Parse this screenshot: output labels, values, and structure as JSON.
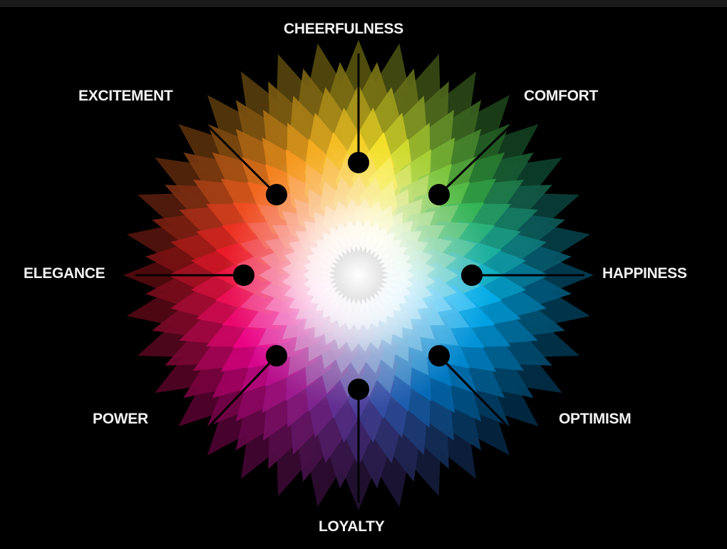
{
  "diagram": {
    "labels": {
      "cheerfulness": "CHEERFULNESS",
      "excitement": "EXCITEMENT",
      "comfort": "COMFORT",
      "elegance": "ELEGANCE",
      "happiness": "HAPPINESS",
      "power": "POWER",
      "optimism": "OPTIMISM",
      "loyalty": "LOYALTY"
    },
    "colors": {
      "background": "#000000",
      "label": "#f2f2f2",
      "marker": "#000000",
      "yellow": "#f5e629",
      "orange": "#f7941d",
      "red": "#ed1c24",
      "magenta": "#ec008c",
      "violet": "#662d91",
      "blue": "#0072bc",
      "cyan": "#00aeef",
      "green": "#39b54a"
    },
    "icons": [
      "color-wheel-icon",
      "marker-dot-icon"
    ]
  }
}
